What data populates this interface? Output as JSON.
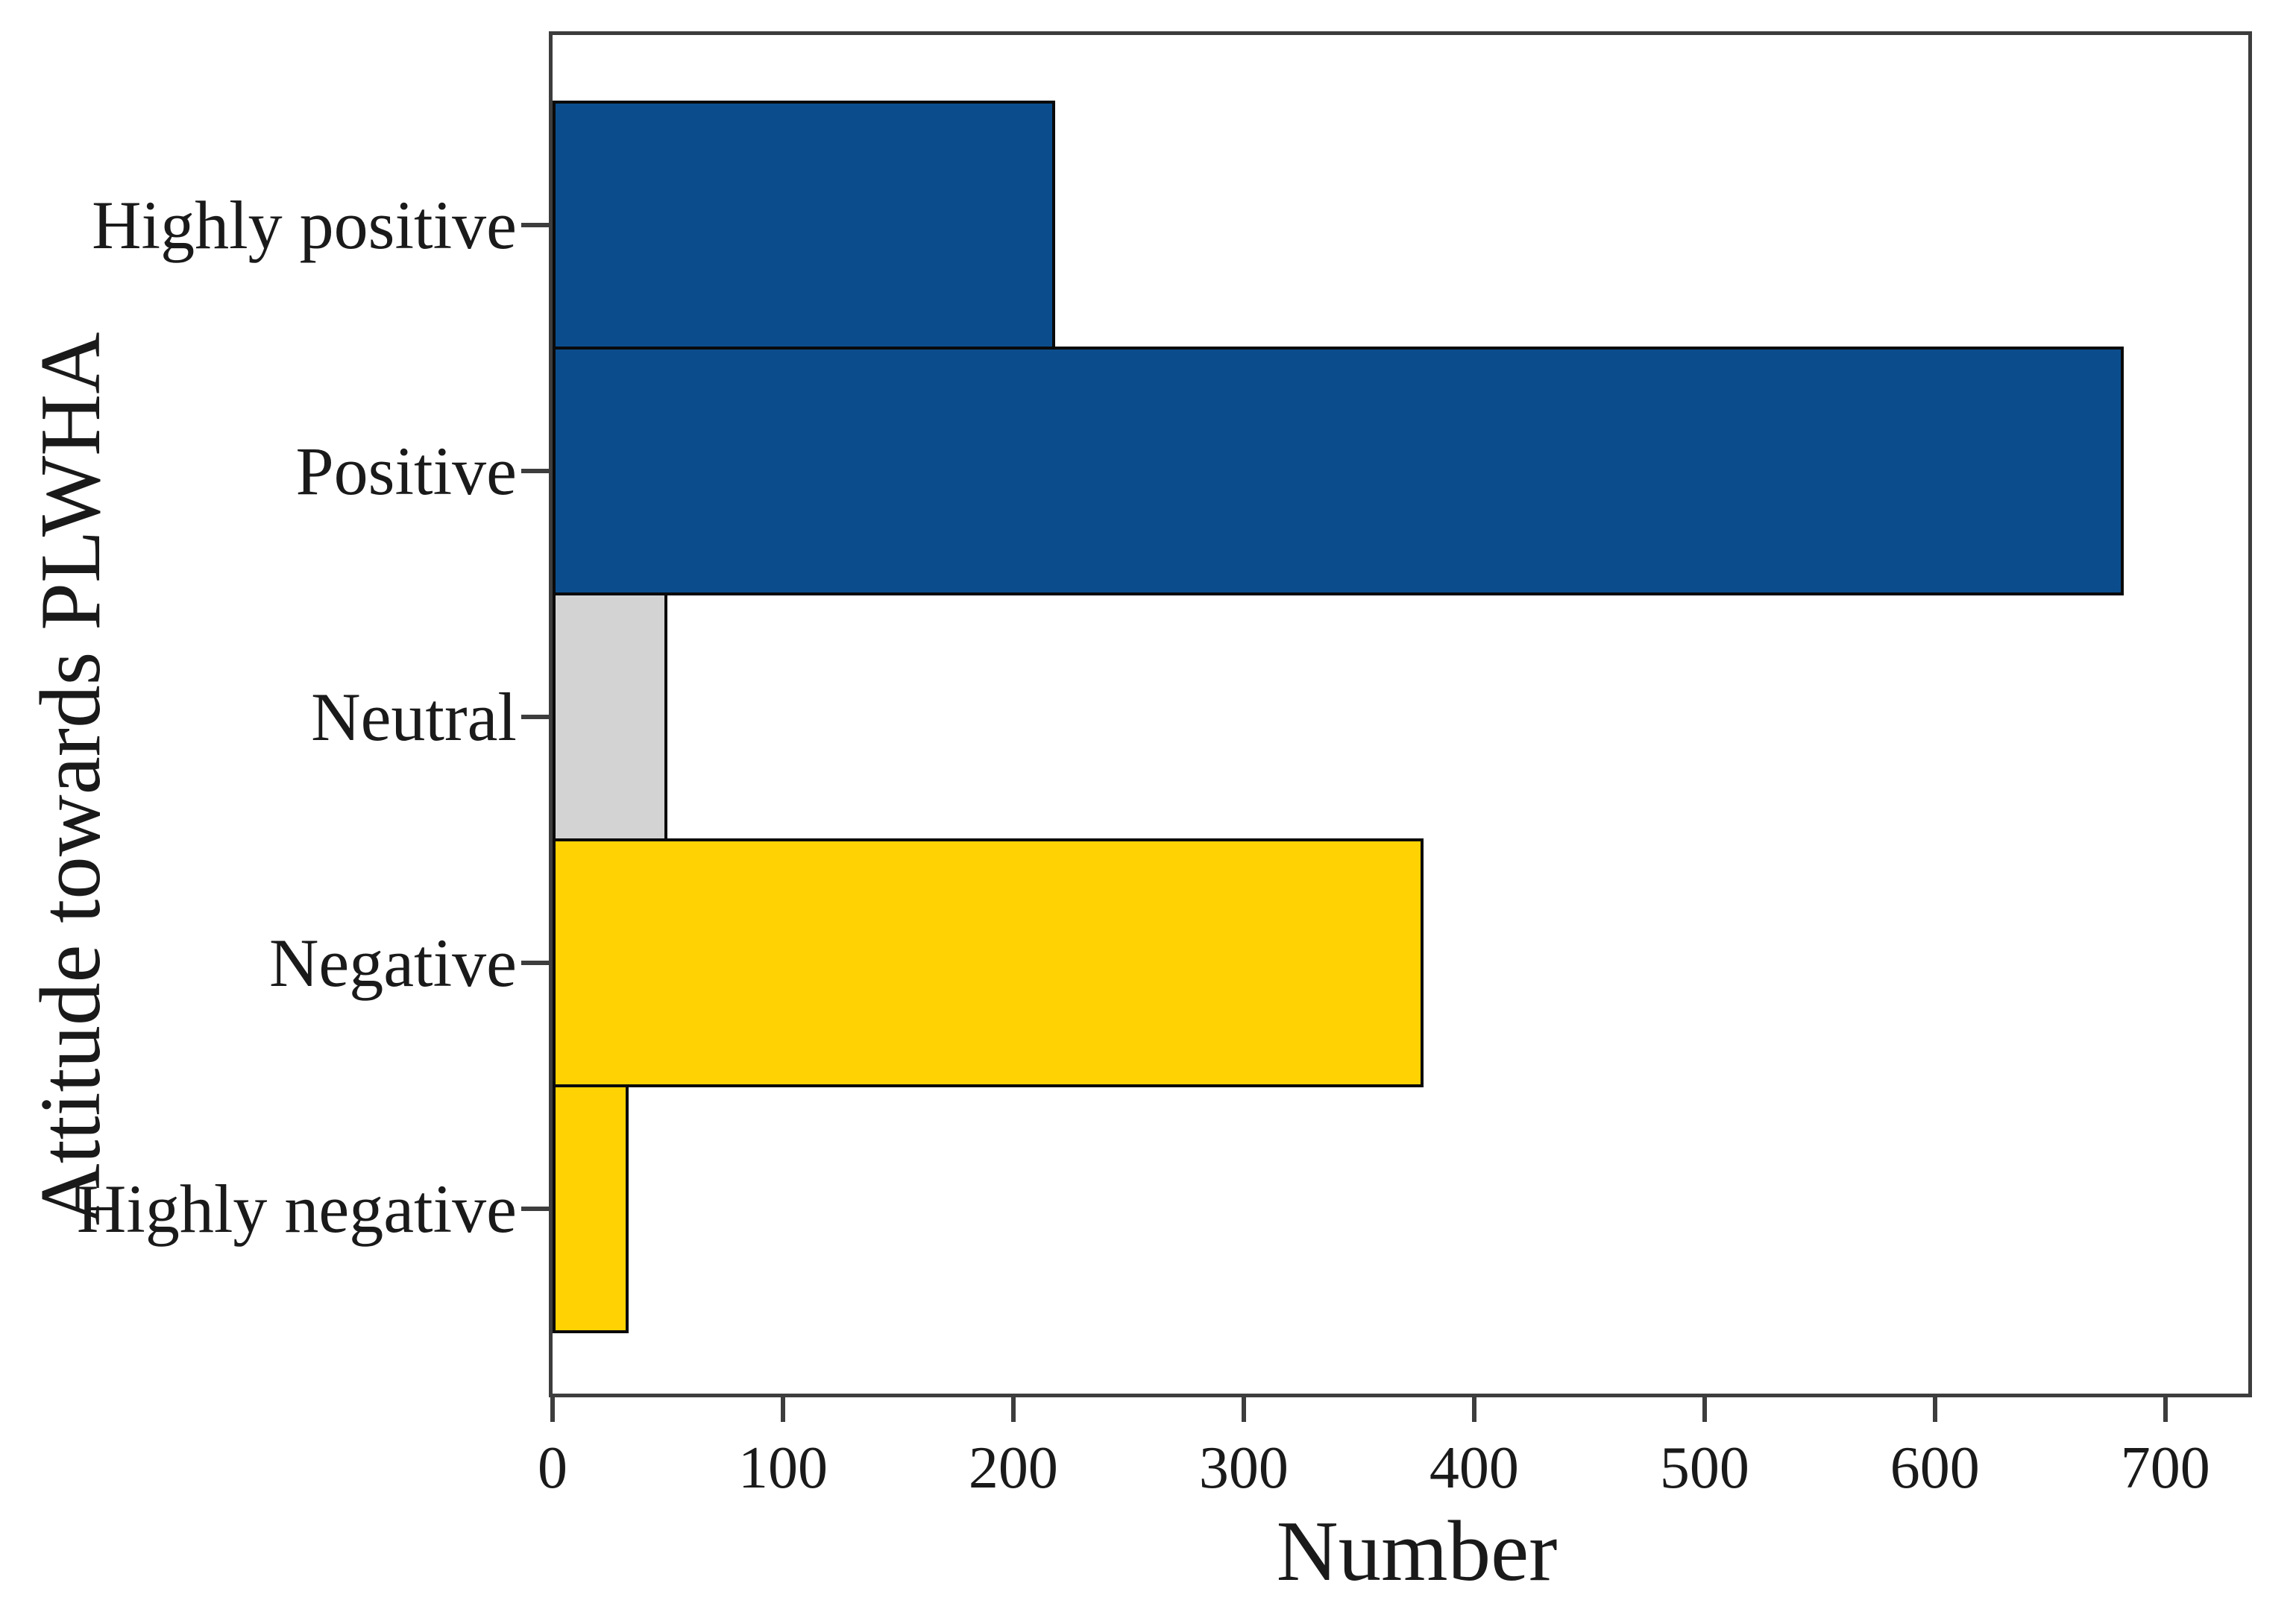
{
  "chart_data": {
    "type": "bar",
    "orientation": "horizontal",
    "title": "",
    "categories": [
      "Highly positive",
      "Positive",
      "Neutral",
      "Negative",
      "Highly negative"
    ],
    "values": [
      218,
      682,
      50,
      378,
      33
    ],
    "bar_colors": [
      "#0b4d8c",
      "#0b4d8c",
      "#d3d3d3",
      "#ffd203",
      "#ffd203"
    ],
    "xlabel": "Number",
    "ylabel": "Attitude towards PLWHA",
    "x_ticks": [
      0,
      100,
      200,
      300,
      400,
      500,
      600,
      700
    ],
    "xlim": [
      0,
      736
    ],
    "grid": false,
    "legend": null,
    "frame": true
  },
  "style": {
    "background": "#ffffff",
    "frame_color": "#3d3d3d",
    "bar_outline": "#0a0a0a",
    "text_color": "#1a1a1a",
    "positive_blue": "#0b4d8c",
    "neutral_gray": "#d3d3d3",
    "negative_yellow": "#ffd203"
  }
}
